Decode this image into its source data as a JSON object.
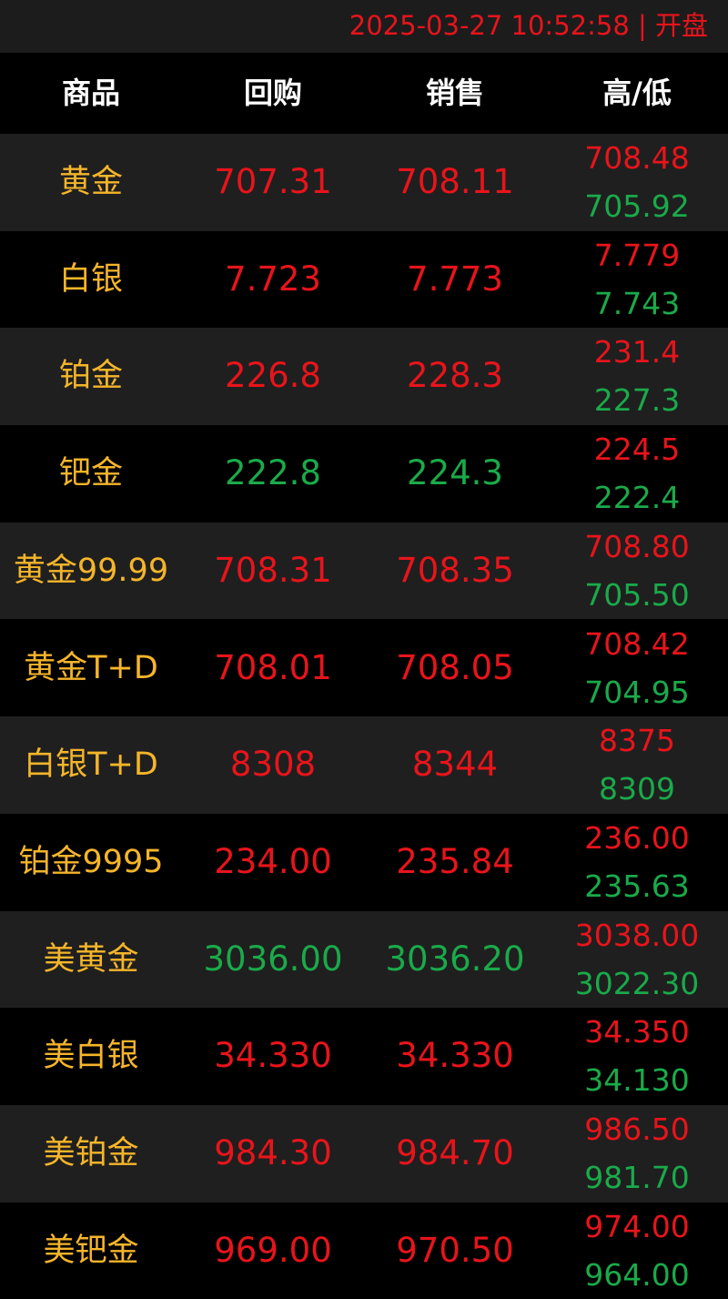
{
  "status": {
    "text": "2025-03-27 10:52:58 | 开盘",
    "color": "#e8141b"
  },
  "table": {
    "header": [
      "商品",
      "回购",
      "销售",
      "高/低"
    ],
    "name_color": "#f5b52a",
    "high_color": "#e8141b",
    "low_color": "#1aaa4a",
    "rows": [
      {
        "name": "黄金",
        "buy": "707.31",
        "sell": "708.11",
        "high": "708.48",
        "low": "705.92",
        "color": "#e8141b"
      },
      {
        "name": "白银",
        "buy": "7.723",
        "sell": "7.773",
        "high": "7.779",
        "low": "7.743",
        "color": "#e8141b"
      },
      {
        "name": "铂金",
        "buy": "226.8",
        "sell": "228.3",
        "high": "231.4",
        "low": "227.3",
        "color": "#e8141b"
      },
      {
        "name": "钯金",
        "buy": "222.8",
        "sell": "224.3",
        "high": "224.5",
        "low": "222.4",
        "color": "#1aaa4a"
      },
      {
        "name": "黄金99.99",
        "buy": "708.31",
        "sell": "708.35",
        "high": "708.80",
        "low": "705.50",
        "color": "#e8141b"
      },
      {
        "name": "黄金T+D",
        "buy": "708.01",
        "sell": "708.05",
        "high": "708.42",
        "low": "704.95",
        "color": "#e8141b"
      },
      {
        "name": "白银T+D",
        "buy": "8308",
        "sell": "8344",
        "high": "8375",
        "low": "8309",
        "color": "#e8141b"
      },
      {
        "name": "铂金9995",
        "buy": "234.00",
        "sell": "235.84",
        "high": "236.00",
        "low": "235.63",
        "color": "#e8141b"
      },
      {
        "name": "美黄金",
        "buy": "3036.00",
        "sell": "3036.20",
        "high": "3038.00",
        "low": "3022.30",
        "color": "#1aaa4a"
      },
      {
        "name": "美白银",
        "buy": "34.330",
        "sell": "34.330",
        "high": "34.350",
        "low": "34.130",
        "color": "#e8141b"
      },
      {
        "name": "美铂金",
        "buy": "984.30",
        "sell": "984.70",
        "high": "986.50",
        "low": "981.70",
        "color": "#e8141b"
      },
      {
        "name": "美钯金",
        "buy": "969.00",
        "sell": "970.50",
        "high": "974.00",
        "low": "964.00",
        "color": "#e8141b"
      }
    ]
  }
}
